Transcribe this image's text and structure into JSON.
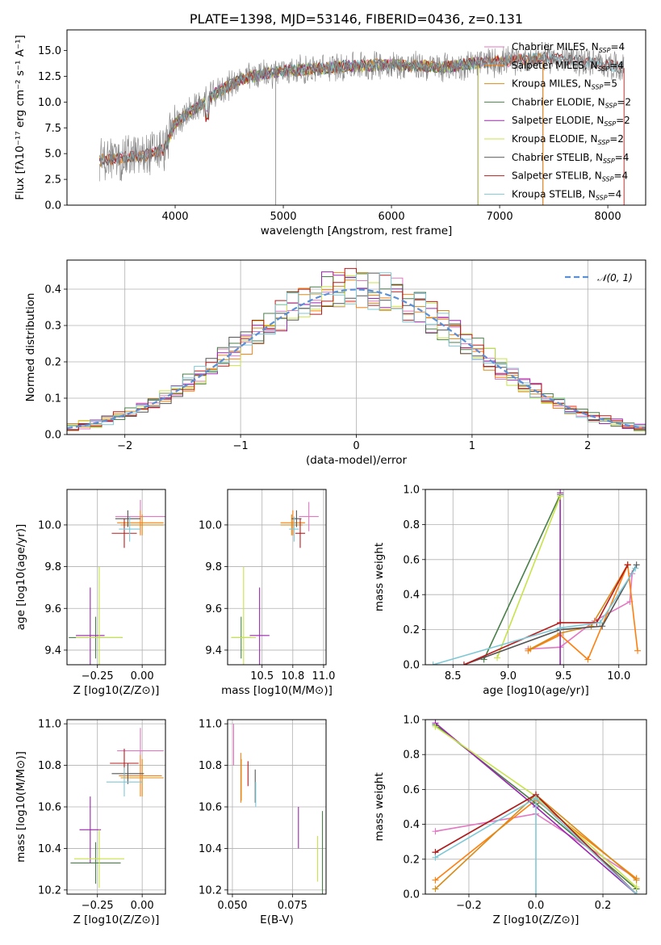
{
  "colors": {
    "chabrier_miles": "#e377c2",
    "salpeter_miles": "#ff7f0e",
    "kroupa_miles": "#d88c1a",
    "chabrier_elodie": "#4a7f4a",
    "salpeter_elodie": "#9c27b0",
    "kroupa_elodie": "#c7e34a",
    "chabrier_stelib": "#555555",
    "salpeter_stelib": "#b71c1c",
    "kroupa_stelib": "#7ec8d6",
    "gauss": "#5b8fd6",
    "gray_data": "#808080"
  },
  "chart_data": [
    {
      "id": "spectrum",
      "type": "line",
      "title": "PLATE=1398, MJD=53146, FIBERID=0436, z=0.131",
      "xlabel": "wavelength [Angstrom, rest frame]",
      "ylabel": "Flux [fλ10⁻¹⁷ erg cm⁻² s⁻¹ A⁻¹]",
      "xlim": [
        3000,
        8350
      ],
      "ylim": [
        0,
        17
      ],
      "xticks": [
        4000,
        5000,
        6000,
        7000,
        8000
      ],
      "yticks": [
        0.0,
        2.5,
        5.0,
        7.5,
        10.0,
        12.5,
        15.0
      ],
      "legend": [
        "Chabrier MILES, N_SSP=4",
        "Salpeter MILES, N_SSP=4",
        "Kroupa MILES, N_SSP=5",
        "Chabrier ELODIE, N_SSP=2",
        "Salpeter ELODIE, N_SSP=2",
        "Kroupa ELODIE, N_SSP=2",
        "Chabrier STELIB, N_SSP=4",
        "Salpeter STELIB, N_SSP=4",
        "Kroupa STELIB, N_SSP=4"
      ],
      "legend_placement": "right",
      "grid": false,
      "continuum": {
        "x": [
          3300,
          3500,
          3700,
          3900,
          4000,
          4200,
          4400,
          4600,
          4800,
          5000,
          5300,
          5600,
          5900,
          6200,
          6500,
          6800,
          7100,
          7400,
          7700,
          8000,
          8150
        ],
        "y": [
          4.3,
          4.6,
          4.8,
          5.4,
          8.0,
          9.5,
          11.0,
          12.2,
          12.7,
          13.0,
          13.2,
          13.5,
          13.6,
          13.5,
          13.4,
          13.8,
          14.0,
          14.3,
          14.0,
          13.6,
          13.3
        ]
      }
    },
    {
      "id": "residuals",
      "type": "histogram",
      "xlabel": "(data-model)/error",
      "ylabel": "Normed distribution",
      "xlim": [
        -2.5,
        2.5
      ],
      "ylim": [
        0,
        0.48
      ],
      "xticks": [
        -2,
        -1,
        0,
        1,
        2
      ],
      "yticks": [
        0.0,
        0.1,
        0.2,
        0.3,
        0.4
      ],
      "legend": [
        "N(0,1)"
      ],
      "legend_placement": "top-right",
      "grid": true,
      "bin_width": 0.1,
      "reference_curve": "normal(0,1)"
    },
    {
      "id": "age_vs_Z",
      "type": "errorbar",
      "xlabel": "Z [log10(Z/Z⊙)]",
      "ylabel": "age  [log10(age/yr)]",
      "xlim": [
        -0.42,
        0.13
      ],
      "ylim": [
        9.33,
        10.17
      ],
      "xticks": [
        -0.25,
        0.0
      ],
      "yticks": [
        9.4,
        9.6,
        9.8,
        10.0
      ],
      "grid": true,
      "points": [
        {
          "c": "chabrier_miles",
          "x": -0.01,
          "xe": 0.14,
          "y": 10.04,
          "ye": 0.08
        },
        {
          "c": "salpeter_miles",
          "x": -0.01,
          "xe": 0.13,
          "y": 10.01,
          "ye": 0.06
        },
        {
          "c": "kroupa_miles",
          "x": 0.0,
          "xe": 0.12,
          "y": 10.0,
          "ye": 0.05
        },
        {
          "c": "chabrier_elodie",
          "x": -0.26,
          "xe": 0.15,
          "y": 9.46,
          "ye": 0.1
        },
        {
          "c": "salpeter_elodie",
          "x": -0.29,
          "xe": 0.08,
          "y": 9.47,
          "ye": 0.23
        },
        {
          "c": "kroupa_elodie",
          "x": -0.24,
          "xe": 0.13,
          "y": 9.46,
          "ye": 0.34
        },
        {
          "c": "chabrier_stelib",
          "x": -0.08,
          "xe": 0.07,
          "y": 10.03,
          "ye": 0.04
        },
        {
          "c": "salpeter_stelib",
          "x": -0.1,
          "xe": 0.07,
          "y": 9.96,
          "ye": 0.07
        },
        {
          "c": "kroupa_stelib",
          "x": -0.07,
          "xe": 0.06,
          "y": 9.98,
          "ye": 0.06
        }
      ]
    },
    {
      "id": "age_vs_mass",
      "type": "errorbar",
      "xlabel": "mass [log10(M/M⊙)]",
      "ylabel": "",
      "xlim": [
        10.22,
        11.02
      ],
      "ylim": [
        9.33,
        10.17
      ],
      "xticks": [
        10.5,
        10.75,
        11.0
      ],
      "yticks": [
        9.4,
        9.6,
        9.8,
        10.0
      ],
      "grid": true,
      "points": [
        {
          "c": "chabrier_miles",
          "x": 10.88,
          "xe": 0.08,
          "y": 10.04,
          "ye": 0.07
        },
        {
          "c": "salpeter_miles",
          "x": 10.75,
          "xe": 0.1,
          "y": 10.01,
          "ye": 0.06
        },
        {
          "c": "kroupa_miles",
          "x": 10.74,
          "xe": 0.09,
          "y": 10.0,
          "ye": 0.05
        },
        {
          "c": "chabrier_elodie",
          "x": 10.33,
          "xe": 0.08,
          "y": 9.46,
          "ye": 0.1
        },
        {
          "c": "salpeter_elodie",
          "x": 10.48,
          "xe": 0.08,
          "y": 9.47,
          "ye": 0.23
        },
        {
          "c": "kroupa_elodie",
          "x": 10.35,
          "xe": 0.1,
          "y": 9.46,
          "ye": 0.34
        },
        {
          "c": "chabrier_stelib",
          "x": 10.78,
          "xe": 0.04,
          "y": 10.03,
          "ye": 0.04
        },
        {
          "c": "salpeter_stelib",
          "x": 10.81,
          "xe": 0.04,
          "y": 9.96,
          "ye": 0.07
        },
        {
          "c": "kroupa_stelib",
          "x": 10.76,
          "xe": 0.04,
          "y": 9.98,
          "ye": 0.06
        }
      ]
    },
    {
      "id": "weight_vs_age",
      "type": "line",
      "xlabel": "age  [log10(age/yr)]",
      "ylabel": "mass weight",
      "xlim": [
        8.25,
        10.25
      ],
      "ylim": [
        0.0,
        1.0
      ],
      "xticks": [
        8.5,
        9.0,
        9.5,
        10.0
      ],
      "yticks": [
        0.0,
        0.2,
        0.4,
        0.6,
        0.8,
        1.0
      ],
      "grid": true,
      "series": [
        {
          "c": "chabrier_miles",
          "x": [
            9.18,
            9.47,
            9.78,
            10.1,
            10.12
          ],
          "y": [
            0.09,
            0.1,
            0.25,
            0.36,
            0.52
          ]
        },
        {
          "c": "salpeter_miles",
          "x": [
            9.18,
            9.47,
            9.72,
            10.08,
            10.17
          ],
          "y": [
            0.08,
            0.17,
            0.03,
            0.57,
            0.08
          ]
        },
        {
          "c": "kroupa_miles",
          "x": [
            9.2,
            9.47,
            9.75,
            10.08
          ],
          "y": [
            0.09,
            0.18,
            0.22,
            0.57
          ]
        },
        {
          "c": "chabrier_elodie",
          "x": [
            8.78,
            9.47
          ],
          "y": [
            0.03,
            0.97
          ]
        },
        {
          "c": "salpeter_elodie",
          "x": [
            9.47,
            9.47
          ],
          "y": [
            0.98,
            0.0
          ]
        },
        {
          "c": "kroupa_elodie",
          "x": [
            8.9,
            9.47
          ],
          "y": [
            0.04,
            0.96
          ]
        },
        {
          "c": "chabrier_stelib",
          "x": [
            8.6,
            9.47,
            9.85,
            10.16
          ],
          "y": [
            0.0,
            0.2,
            0.22,
            0.57
          ]
        },
        {
          "c": "salpeter_stelib",
          "x": [
            8.6,
            9.47,
            9.8,
            10.08
          ],
          "y": [
            0.0,
            0.24,
            0.24,
            0.57
          ]
        },
        {
          "c": "kroupa_stelib",
          "x": [
            8.32,
            9.47,
            9.83,
            10.15
          ],
          "y": [
            0.0,
            0.21,
            0.24,
            0.55
          ]
        }
      ]
    },
    {
      "id": "mass_vs_Z",
      "type": "errorbar",
      "xlabel": "Z [log10(Z/Z⊙)]",
      "ylabel": "mass [log10(M/M⊙)]",
      "xlim": [
        -0.42,
        0.13
      ],
      "ylim": [
        10.18,
        11.02
      ],
      "xticks": [
        -0.25,
        0.0
      ],
      "yticks": [
        10.2,
        10.4,
        10.6,
        10.8,
        11.0
      ],
      "grid": true,
      "points": [
        {
          "c": "chabrier_miles",
          "x": -0.01,
          "xe": 0.13,
          "y": 10.87,
          "ye": 0.11
        },
        {
          "c": "salpeter_miles",
          "x": -0.01,
          "xe": 0.12,
          "y": 10.75,
          "ye": 0.1
        },
        {
          "c": "kroupa_miles",
          "x": 0.0,
          "xe": 0.12,
          "y": 10.74,
          "ye": 0.09
        },
        {
          "c": "chabrier_elodie",
          "x": -0.26,
          "xe": 0.14,
          "y": 10.33,
          "ye": 0.1
        },
        {
          "c": "salpeter_elodie",
          "x": -0.29,
          "xe": 0.06,
          "y": 10.49,
          "ye": 0.16
        },
        {
          "c": "kroupa_elodie",
          "x": -0.24,
          "xe": 0.14,
          "y": 10.35,
          "ye": 0.14
        },
        {
          "c": "chabrier_stelib",
          "x": -0.08,
          "xe": 0.09,
          "y": 10.76,
          "ye": 0.05
        },
        {
          "c": "salpeter_stelib",
          "x": -0.1,
          "xe": 0.08,
          "y": 10.81,
          "ye": 0.07
        },
        {
          "c": "kroupa_stelib",
          "x": -0.1,
          "xe": 0.1,
          "y": 10.72,
          "ye": 0.07
        }
      ]
    },
    {
      "id": "mass_vs_ebv",
      "type": "errorbar",
      "xlabel": "E(B-V)",
      "ylabel": "",
      "xlim": [
        0.048,
        0.089
      ],
      "ylim": [
        10.18,
        11.02
      ],
      "xticks": [
        0.05,
        0.075
      ],
      "yticks": [
        10.2,
        10.4,
        10.6,
        10.8,
        11.0
      ],
      "grid": true,
      "points": [
        {
          "c": "chabrier_miles",
          "x": 0.0505,
          "xe": 0.0,
          "y": 10.9,
          "ye": 0.1
        },
        {
          "c": "salpeter_miles",
          "x": 0.0535,
          "xe": 0.0,
          "y": 10.74,
          "ye": 0.12
        },
        {
          "c": "kroupa_miles",
          "x": 0.0537,
          "xe": 0.0,
          "y": 10.73,
          "ye": 0.1
        },
        {
          "c": "chabrier_elodie",
          "x": 0.0875,
          "xe": 0.0,
          "y": 10.33,
          "ye": 0.25
        },
        {
          "c": "salpeter_elodie",
          "x": 0.0775,
          "xe": 0.0,
          "y": 10.5,
          "ye": 0.1
        },
        {
          "c": "kroupa_elodie",
          "x": 0.0855,
          "xe": 0.0,
          "y": 10.35,
          "ye": 0.11
        },
        {
          "c": "chabrier_stelib",
          "x": 0.0595,
          "xe": 0.0,
          "y": 10.7,
          "ye": 0.08
        },
        {
          "c": "salpeter_stelib",
          "x": 0.0565,
          "xe": 0.0,
          "y": 10.76,
          "ye": 0.06
        },
        {
          "c": "kroupa_stelib",
          "x": 0.0597,
          "xe": 0.0,
          "y": 10.66,
          "ye": 0.06
        }
      ]
    },
    {
      "id": "weight_vs_Z",
      "type": "line",
      "xlabel": "Z [log10(Z/Z⊙)]",
      "ylabel": "mass weight",
      "xlim": [
        -0.33,
        0.33
      ],
      "ylim": [
        0.0,
        1.0
      ],
      "xticks": [
        -0.2,
        0.0,
        0.2
      ],
      "yticks": [
        0.0,
        0.2,
        0.4,
        0.6,
        0.8,
        1.0
      ],
      "grid": true,
      "series": [
        {
          "c": "chabrier_miles",
          "x": [
            -0.3,
            0.0,
            0.3
          ],
          "y": [
            0.36,
            0.46,
            0.09
          ]
        },
        {
          "c": "salpeter_miles",
          "x": [
            -0.3,
            0.0,
            0.3
          ],
          "y": [
            0.08,
            0.54,
            0.09
          ]
        },
        {
          "c": "kroupa_miles",
          "x": [
            -0.3,
            0.0,
            0.3
          ],
          "y": [
            0.03,
            0.57,
            0.08
          ]
        },
        {
          "c": "chabrier_elodie",
          "x": [
            -0.3,
            0.0,
            0.3
          ],
          "y": [
            0.97,
            0.52,
            0.03
          ]
        },
        {
          "c": "salpeter_elodie",
          "x": [
            -0.3,
            0.0,
            0.3
          ],
          "y": [
            0.98,
            0.5,
            0.0
          ]
        },
        {
          "c": "kroupa_elodie",
          "x": [
            -0.3,
            0.0,
            0.3
          ],
          "y": [
            0.96,
            0.56,
            0.04
          ]
        },
        {
          "c": "chabrier_stelib",
          "x": [
            -0.3,
            0.0,
            0.3
          ],
          "y": [
            0.24,
            0.57,
            0.0
          ]
        },
        {
          "c": "salpeter_stelib",
          "x": [
            -0.3,
            0.0,
            0.3
          ],
          "y": [
            0.24,
            0.57,
            0.0
          ]
        },
        {
          "c": "kroupa_stelib",
          "x": [
            -0.3,
            0.0,
            0.3
          ],
          "y": [
            0.21,
            0.55,
            0.0
          ]
        },
        {
          "c": "kroupa_stelib",
          "x": [
            0.0,
            0.0
          ],
          "y": [
            0.55,
            0.0
          ]
        }
      ]
    }
  ]
}
